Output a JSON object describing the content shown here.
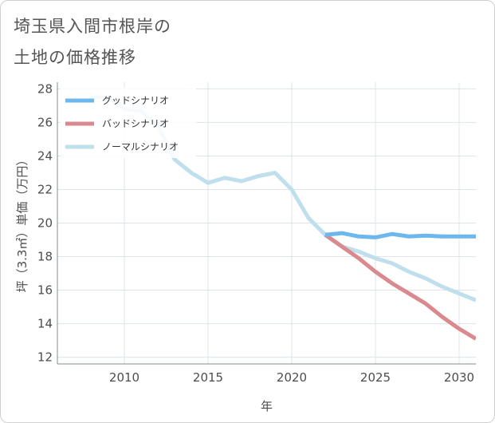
{
  "title_line1": "埼玉県入間市根岸の",
  "title_line2": "土地の価格推移",
  "chart_data": {
    "type": "line",
    "xlabel": "年",
    "ylabel": "坪（3.3㎡）単価（万円）",
    "xlim": [
      2006,
      2031
    ],
    "ylim": [
      11.6,
      28.4
    ],
    "xticks": [
      2010,
      2015,
      2020,
      2025,
      2030
    ],
    "yticks": [
      12,
      14,
      16,
      18,
      20,
      22,
      24,
      26,
      28
    ],
    "grid": true,
    "legend_position": "top-left",
    "series": [
      {
        "name": "グッドシナリオ",
        "color": "#6cb8ee",
        "x": [
          2022,
          2023,
          2024,
          2025,
          2026,
          2027,
          2028,
          2029,
          2030,
          2031
        ],
        "y": [
          19.3,
          19.4,
          19.2,
          19.15,
          19.35,
          19.2,
          19.25,
          19.2,
          19.2,
          19.2
        ]
      },
      {
        "name": "バッドシナリオ",
        "color": "#da8a8e",
        "x": [
          2022,
          2023,
          2024,
          2025,
          2026,
          2027,
          2028,
          2029,
          2030,
          2031
        ],
        "y": [
          19.3,
          18.6,
          17.9,
          17.1,
          16.4,
          15.8,
          15.2,
          14.4,
          13.7,
          13.1
        ]
      },
      {
        "name": "ノーマルシナリオ",
        "color": "#c0dfec",
        "x": [
          2008,
          2009,
          2010,
          2011,
          2012,
          2013,
          2014,
          2015,
          2016,
          2017,
          2018,
          2019,
          2020,
          2021,
          2022,
          2023,
          2024,
          2025,
          2026,
          2027,
          2028,
          2029,
          2030,
          2031
        ],
        "y": [
          27.5,
          27.5,
          26.8,
          26.7,
          25.8,
          23.8,
          23.0,
          22.4,
          22.7,
          22.5,
          22.8,
          23.0,
          22.0,
          20.3,
          19.3,
          18.6,
          18.3,
          17.9,
          17.6,
          17.1,
          16.7,
          16.2,
          15.8,
          15.4
        ]
      }
    ]
  }
}
